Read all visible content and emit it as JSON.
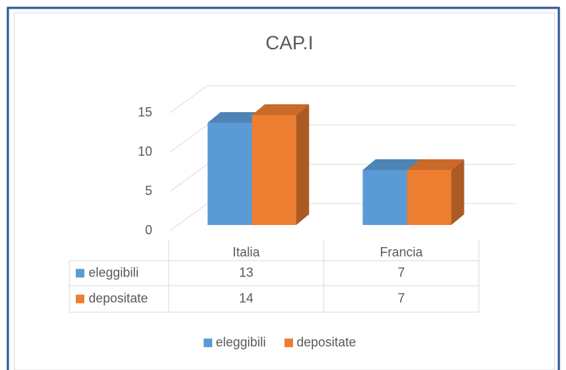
{
  "chart_data": {
    "type": "bar3d",
    "title": "CAP.I",
    "categories": [
      "Italia",
      "Francia"
    ],
    "series": [
      {
        "name": "eleggibili",
        "color": "#5b9bd5",
        "values": [
          13,
          7
        ]
      },
      {
        "name": "depositate",
        "color": "#ed7d31",
        "values": [
          14,
          7
        ]
      }
    ],
    "ylim": [
      0,
      15
    ],
    "yticks": [
      0,
      5,
      10,
      15
    ],
    "grid": true,
    "data_table": true,
    "legend": "bottom"
  }
}
